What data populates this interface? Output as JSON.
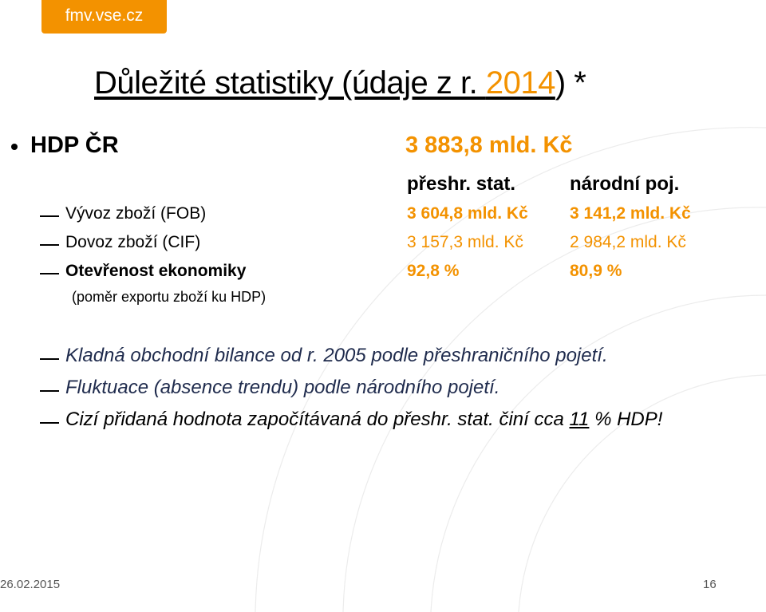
{
  "logo": "fmv.vse.cz",
  "title": {
    "prefix": "Důležité statistiky (údaje z r. ",
    "year": "2014",
    "suffix": ") *"
  },
  "hdp": {
    "label": "HDP ČR",
    "value": "3 883,8 mld. Kč"
  },
  "columns": {
    "col1": "přeshr. stat.",
    "col2": "národní poj."
  },
  "rows": [
    {
      "label": "Vývoz zboží (FOB)",
      "v1": "3 604,8 mld. Kč",
      "v2": "3 141,2 mld. Kč"
    },
    {
      "label": "Dovoz zboží (CIF)",
      "v1": "3 157,3 mld. Kč",
      "v2": "2 984,2 mld. Kč"
    },
    {
      "label": "Otevřenost ekonomiky",
      "v1": "92,8 %",
      "v2": "80,9 %"
    }
  ],
  "openness_note": "(poměr exportu zboží ku HDP)",
  "notes": {
    "n1": "Kladná obchodní bilance od r. 2005 podle přeshraničního pojetí.",
    "n2": "Fluktuace (absence trendu) podle národního pojetí.",
    "n3_prefix": "Cizí přidaná hodnota započítávaná do přeshr. stat. činí cca ",
    "n3_value": "11",
    "n3_suffix": " % HDP!"
  },
  "footer": {
    "date": "26.02.2015",
    "page": "16"
  },
  "colors": {
    "accent": "#f39200",
    "dark_text": "#1f2b4d"
  }
}
